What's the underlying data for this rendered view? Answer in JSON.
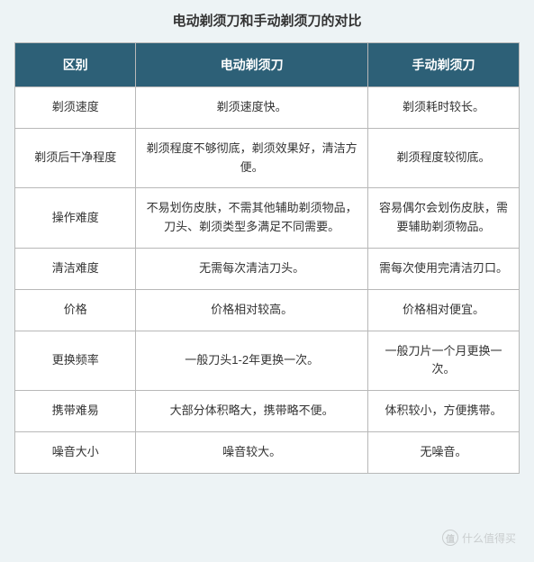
{
  "title": "电动剃须刀和手动剃须刀的对比",
  "table": {
    "headers": [
      "区别",
      "电动剃须刀",
      "手动剃须刀"
    ],
    "header_bg": "#2d6077",
    "header_text_color": "#ffffff",
    "border_color": "#b8b8b8",
    "cell_bg": "#ffffff",
    "font_size": 13,
    "column_widths": [
      "24%",
      "46%",
      "30%"
    ],
    "rows": [
      {
        "label": "剃须速度",
        "electric": "剃须速度快。",
        "manual": "剃须耗时较长。"
      },
      {
        "label": "剃须后干净程度",
        "electric": "剃须程度不够彻底，剃须效果好，清洁方便。",
        "manual": "剃须程度较彻底。"
      },
      {
        "label": "操作难度",
        "electric": "不易划伤皮肤，不需其他辅助剃须物品，刀头、剃须类型多满足不同需要。",
        "manual": "容易偶尔会划伤皮肤，需要辅助剃须物品。"
      },
      {
        "label": "清洁难度",
        "electric": "无需每次清洁刀头。",
        "manual": "需每次使用完清洁刃口。"
      },
      {
        "label": "价格",
        "electric": "价格相对较高。",
        "manual": "价格相对便宜。"
      },
      {
        "label": "更换频率",
        "electric": "一般刀头1-2年更换一次。",
        "manual": "一般刀片一个月更换一次。"
      },
      {
        "label": "携带难易",
        "electric": "大部分体积略大，携带略不便。",
        "manual": "体积较小，方便携带。"
      },
      {
        "label": "噪音大小",
        "electric": "噪音较大。",
        "manual": "无噪音。"
      }
    ]
  },
  "watermark": {
    "icon_text": "值",
    "text": "什么值得买"
  },
  "page_bg": "#edf3f5"
}
